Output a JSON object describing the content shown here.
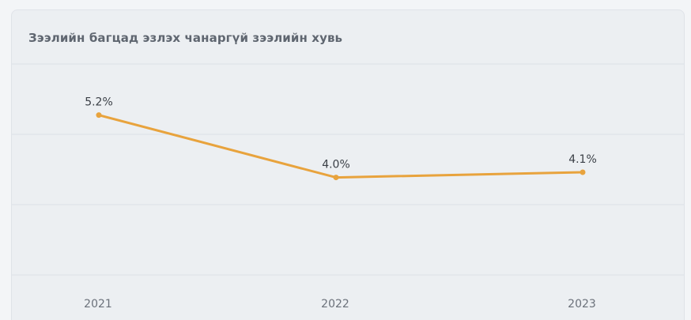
{
  "chart_data": {
    "type": "line",
    "title": "Зээлийн багцад эзлэх чанаргүй зээлийн хувь",
    "categories": [
      "2021",
      "2022",
      "2023"
    ],
    "series": [
      {
        "values": [
          5.2,
          4.0,
          4.1
        ],
        "labels": [
          "5.2%",
          "4.0%",
          "4.1%"
        ],
        "color": "#e8a33d"
      }
    ],
    "highlight_category_color": "#e8a33d",
    "highlight_category_index": 2,
    "grid": true,
    "legend": "none"
  }
}
